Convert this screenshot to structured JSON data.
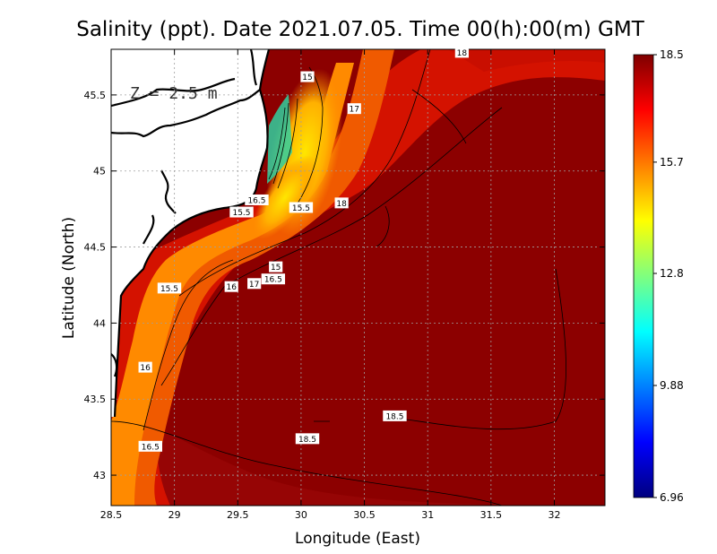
{
  "chart_data": {
    "type": "heatmap",
    "title": "Salinity (ppt). Date 2021.07.05. Time 00(h):00(m) GMT",
    "xlabel": "Longitude (East)",
    "ylabel": "Latitude (North)",
    "xlim": [
      28.5,
      32.4
    ],
    "ylim": [
      42.8,
      45.8
    ],
    "xticks": [
      "28.5",
      "29",
      "29.5",
      "30",
      "30.5",
      "31",
      "31.5",
      "32"
    ],
    "xtick_values": [
      28.5,
      29,
      29.5,
      30,
      30.5,
      31,
      31.5,
      32
    ],
    "yticks": [
      "43",
      "43.5",
      "44",
      "44.5",
      "45",
      "45.5"
    ],
    "ytick_values": [
      43,
      43.5,
      44,
      44.5,
      45,
      45.5
    ],
    "grid": true,
    "annotation": "Z = 2.5 m",
    "colorbar": {
      "min": 6.96,
      "max": 18.5,
      "tick_labels": [
        "18.5",
        "15.7",
        "12.8",
        "9.88",
        "6.96"
      ],
      "tick_values": [
        18.5,
        15.7,
        12.8,
        9.88,
        6.96
      ],
      "colors": [
        "#00007f",
        "#0000ff",
        "#007fff",
        "#00ffff",
        "#7fff7f",
        "#ffff00",
        "#ff7f00",
        "#ff0000",
        "#7f0000"
      ]
    },
    "contour_labels": [
      {
        "text": "15",
        "lon": 30.05,
        "lat": 45.62
      },
      {
        "text": "17",
        "lon": 30.42,
        "lat": 45.41
      },
      {
        "text": "18",
        "lon": 31.27,
        "lat": 45.78
      },
      {
        "text": "18",
        "lon": 30.32,
        "lat": 44.79
      },
      {
        "text": "15.5",
        "lon": 30.0,
        "lat": 44.76
      },
      {
        "text": "15.5",
        "lon": 29.53,
        "lat": 44.73
      },
      {
        "text": "16.5",
        "lon": 29.65,
        "lat": 44.81
      },
      {
        "text": "15",
        "lon": 29.8,
        "lat": 44.37
      },
      {
        "text": "16.5",
        "lon": 29.78,
        "lat": 44.29
      },
      {
        "text": "17",
        "lon": 29.63,
        "lat": 44.26
      },
      {
        "text": "16",
        "lon": 29.45,
        "lat": 44.24
      },
      {
        "text": "15.5",
        "lon": 28.96,
        "lat": 44.23
      },
      {
        "text": "16",
        "lon": 28.77,
        "lat": 43.71
      },
      {
        "text": "16.5",
        "lon": 28.81,
        "lat": 43.19
      },
      {
        "text": "18.5",
        "lon": 30.05,
        "lat": 43.24
      },
      {
        "text": "18.5",
        "lon": 30.74,
        "lat": 43.39
      }
    ]
  }
}
